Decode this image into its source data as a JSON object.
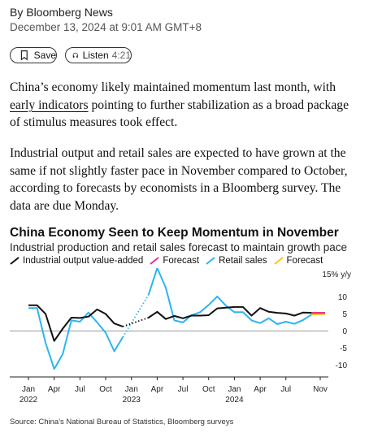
{
  "article": {
    "byline": "By Bloomberg News",
    "date": "December 13, 2024 at 9:01 AM GMT+8",
    "save_label": "Save",
    "listen_label": "Listen",
    "listen_duration": "4:21",
    "p1_before": "China’s economy likely maintained momentum last month, with ",
    "p1_link": "early indicators",
    "p1_after": " pointing to further stabilization as a broad package of stimulus measures took effect.",
    "p2": "Industrial output and retail sales are expected to have grown at the same if not slightly faster pace in November compared to October, according to forecasts by economists in a Bloomberg survey. The data are due Monday."
  },
  "chart": {
    "title": "China Economy Seen to Keep Momentum in November",
    "subtitle": "Industrial production and retail sales forecast to maintain growth pace",
    "legend": {
      "industrial": "Industrial output value-added",
      "forecast1": "Forecast",
      "retail": "Retail sales",
      "forecast2": "Forecast"
    },
    "source": "Source: China's National Bureau of Statistics, Bloomberg surveys",
    "colors": {
      "industrial": "#111111",
      "industrial_forecast": "#e8348a",
      "retail": "#2bb5f0",
      "retail_forecast": "#f5c518"
    }
  },
  "chart_data": {
    "type": "line",
    "ylabel": "15% y/y",
    "ylim": [
      -12,
      16
    ],
    "y_ticks": [
      -10,
      -5,
      0,
      5,
      10
    ],
    "y_tick_labels": [
      "-10",
      "-5",
      "0",
      "5",
      "10"
    ],
    "x_tick_labels": [
      {
        "label": "Jan",
        "year": "2022",
        "month": "2022-01"
      },
      {
        "label": "Apr",
        "year": "",
        "month": "2022-04"
      },
      {
        "label": "Jul",
        "year": "",
        "month": "2022-07"
      },
      {
        "label": "Oct",
        "year": "",
        "month": "2022-10"
      },
      {
        "label": "Jan",
        "year": "2023",
        "month": "2023-01"
      },
      {
        "label": "Apr",
        "year": "",
        "month": "2023-04"
      },
      {
        "label": "Jul",
        "year": "",
        "month": "2023-07"
      },
      {
        "label": "Oct",
        "year": "",
        "month": "2023-10"
      },
      {
        "label": "Jan",
        "year": "2024",
        "month": "2024-01"
      },
      {
        "label": "Apr",
        "year": "",
        "month": "2024-04"
      },
      {
        "label": "Jul",
        "year": "",
        "month": "2024-07"
      },
      {
        "label": "Nov",
        "year": "",
        "month": "2024-11"
      }
    ],
    "months": [
      "2022-01",
      "2022-02",
      "2022-03",
      "2022-04",
      "2022-05",
      "2022-06",
      "2022-07",
      "2022-08",
      "2022-09",
      "2022-10",
      "2022-11",
      "2022-12",
      "2023-01",
      "2023-02",
      "2023-03",
      "2023-04",
      "2023-05",
      "2023-06",
      "2023-07",
      "2023-08",
      "2023-09",
      "2023-10",
      "2023-11",
      "2023-12",
      "2024-01",
      "2024-02",
      "2024-03",
      "2024-04",
      "2024-05",
      "2024-06",
      "2024-07",
      "2024-08",
      "2024-09",
      "2024-10",
      "2024-11"
    ],
    "series": [
      {
        "name": "Industrial output value-added",
        "values": [
          7.5,
          7.5,
          5.0,
          -2.9,
          0.7,
          3.9,
          3.8,
          4.2,
          6.3,
          5.0,
          2.2,
          1.3,
          null,
          null,
          3.9,
          5.6,
          3.5,
          4.4,
          3.7,
          4.5,
          4.5,
          4.6,
          6.6,
          6.8,
          7.0,
          7.0,
          4.5,
          6.7,
          5.6,
          5.3,
          5.1,
          4.5,
          5.4,
          5.3,
          5.3
        ],
        "gap_months": [
          "2023-01",
          "2023-02"
        ],
        "forecast_month": "2024-11"
      },
      {
        "name": "Retail sales",
        "values": [
          6.7,
          6.7,
          -3.5,
          -11.1,
          -6.7,
          3.1,
          2.7,
          5.4,
          2.5,
          -0.5,
          -5.9,
          -1.8,
          null,
          null,
          10.6,
          18.4,
          12.7,
          3.1,
          2.5,
          4.6,
          5.5,
          7.6,
          10.1,
          7.4,
          5.5,
          5.5,
          3.1,
          2.3,
          3.7,
          2.0,
          2.7,
          2.1,
          3.2,
          4.8,
          5.0
        ],
        "gap_months": [
          "2023-01",
          "2023-02"
        ],
        "forecast_month": "2024-11"
      }
    ],
    "grid": false
  }
}
